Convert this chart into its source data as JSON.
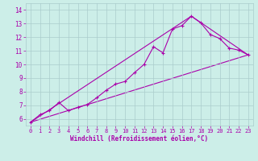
{
  "xlabel": "Windchill (Refroidissement éolien,°C)",
  "background_color": "#cceee8",
  "grid_color": "#aacccc",
  "line_color": "#aa00aa",
  "xlim": [
    -0.5,
    23.5
  ],
  "ylim": [
    5.5,
    14.5
  ],
  "xticks": [
    0,
    1,
    2,
    3,
    4,
    5,
    6,
    7,
    8,
    9,
    10,
    11,
    12,
    13,
    14,
    15,
    16,
    17,
    18,
    19,
    20,
    21,
    22,
    23
  ],
  "yticks": [
    6,
    7,
    8,
    9,
    10,
    11,
    12,
    13,
    14
  ],
  "line1_x": [
    0,
    1,
    2,
    3,
    4,
    5,
    6,
    7,
    8,
    9,
    10,
    11,
    12,
    13,
    14,
    15,
    16,
    17,
    18,
    19,
    20,
    21,
    22,
    23
  ],
  "line1_y": [
    5.75,
    6.3,
    6.6,
    7.2,
    6.6,
    6.85,
    7.05,
    7.55,
    8.1,
    8.55,
    8.75,
    9.4,
    10.0,
    11.3,
    10.85,
    12.6,
    12.85,
    13.55,
    13.05,
    12.2,
    11.9,
    11.2,
    11.05,
    10.7
  ],
  "line2_x": [
    0,
    23
  ],
  "line2_y": [
    5.75,
    10.7
  ],
  "line3_x": [
    0,
    17,
    23
  ],
  "line3_y": [
    5.75,
    13.55,
    10.7
  ]
}
